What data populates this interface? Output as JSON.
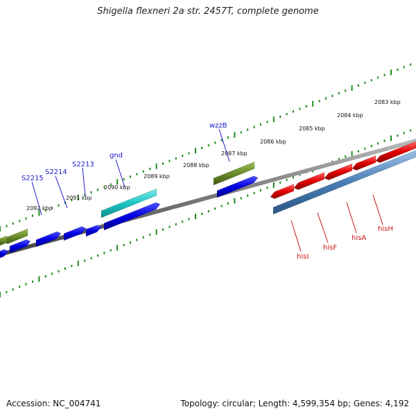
{
  "title": "Shigella flexneri 2a str. 2457T, complete genome",
  "footer": {
    "accession": "Accession: NC_004741",
    "summary": "Topology: circular; Length: 4,599,354 bp; Genes: 4,192"
  },
  "scale_labels": [
    "2083 kbp",
    "2084 kbp",
    "2085 kbp",
    "2086 kbp",
    "2087 kbp",
    "2088 kbp",
    "2089 kbp",
    "2090 kbp",
    "2091 kbp",
    "2092 kbp"
  ],
  "gene_labels": {
    "blue": [
      "wzzB",
      "gnd",
      "S2213",
      "S2214",
      "S2215"
    ],
    "red": [
      "hisI",
      "hisF",
      "hisA",
      "hisH"
    ]
  },
  "colors": {
    "blue_gene": "#0a0ae6",
    "cyan_gene": "#22c8c8",
    "olive_gene": "#6b8c2a",
    "red_gene": "#e01010",
    "steel_band": "#4a7fb5",
    "backbone": "#777777",
    "tick": "#1a8a1a"
  }
}
